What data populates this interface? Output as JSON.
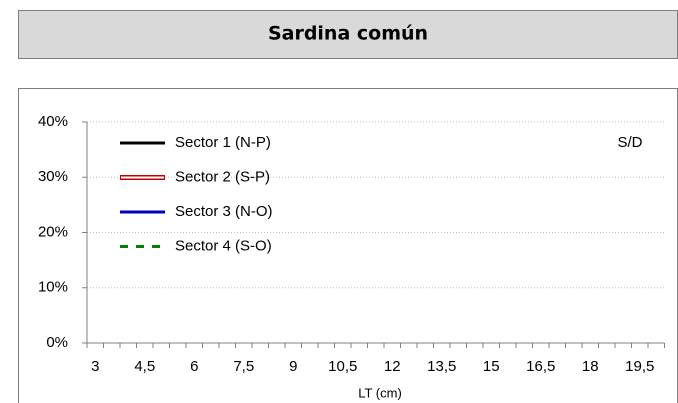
{
  "chart_data": {
    "type": "line",
    "title": "Sardina común",
    "x_label": "LT (cm)",
    "annotation": "S/D",
    "categories": [
      "3",
      null,
      null,
      "4,5",
      null,
      null,
      "6",
      null,
      null,
      "7,5",
      null,
      null,
      "9",
      null,
      null,
      "10,5",
      null,
      null,
      "12",
      null,
      null,
      "13,5",
      null,
      null,
      "15",
      null,
      null,
      "16,5",
      null,
      null,
      "18",
      null,
      null,
      "19,5",
      null
    ],
    "series": [
      {
        "name": "Sector 1 (N-P)",
        "color": "#000000",
        "style": "solid",
        "values": [
          null,
          null,
          null,
          null,
          null,
          null,
          null,
          null,
          null,
          null,
          null,
          null,
          null,
          null,
          null,
          null,
          null,
          null,
          null,
          null,
          null,
          null,
          null,
          null,
          null,
          null,
          null,
          null,
          null,
          null,
          null,
          null,
          null,
          null,
          null
        ]
      },
      {
        "name": "Sector 2 (S-P)",
        "color": "#c00000",
        "style": "hollow",
        "values": [
          null,
          null,
          null,
          null,
          null,
          null,
          null,
          null,
          null,
          null,
          null,
          null,
          null,
          null,
          null,
          null,
          null,
          null,
          null,
          null,
          null,
          null,
          null,
          null,
          null,
          null,
          null,
          null,
          null,
          null,
          null,
          null,
          null,
          null,
          null
        ]
      },
      {
        "name": "Sector 3 (N-O)",
        "color": "#0000c0",
        "style": "solid",
        "values": [
          null,
          null,
          null,
          null,
          null,
          null,
          null,
          null,
          null,
          null,
          null,
          null,
          null,
          null,
          null,
          null,
          null,
          null,
          null,
          null,
          null,
          null,
          null,
          null,
          null,
          null,
          null,
          null,
          null,
          null,
          null,
          null,
          null,
          null,
          null
        ]
      },
      {
        "name": "Sector 4 (S-O)",
        "color": "#008000",
        "style": "dashed",
        "values": [
          null,
          null,
          null,
          null,
          null,
          null,
          null,
          null,
          null,
          null,
          null,
          null,
          null,
          null,
          null,
          null,
          null,
          null,
          null,
          null,
          null,
          null,
          null,
          null,
          null,
          null,
          null,
          null,
          null,
          null,
          null,
          null,
          null,
          null,
          null
        ]
      }
    ],
    "ylim": [
      0,
      40
    ],
    "yticks": [
      {
        "value": 0,
        "label": "0%"
      },
      {
        "value": 10,
        "label": "10%"
      },
      {
        "value": 20,
        "label": "20%"
      },
      {
        "value": 30,
        "label": "30%"
      },
      {
        "value": 40,
        "label": "40%"
      }
    ],
    "grid": true,
    "legend": "upper left"
  }
}
